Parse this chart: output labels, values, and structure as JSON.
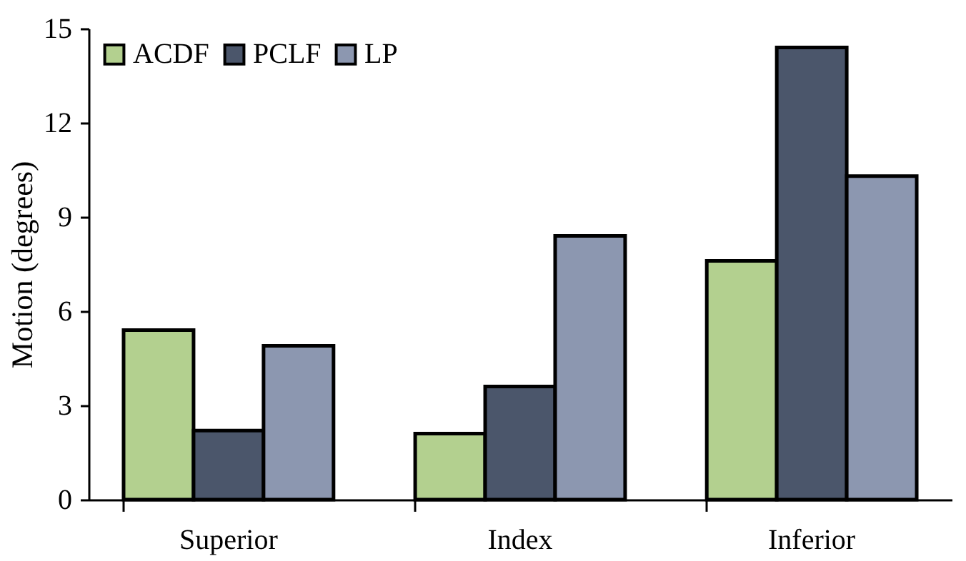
{
  "chart_data": {
    "type": "bar",
    "ylabel": "Motion (degrees)",
    "categories": [
      "Superior",
      "Index",
      "Inferior"
    ],
    "series": [
      {
        "name": "ACDF",
        "color": "#b3d08f",
        "values": [
          5.4,
          2.1,
          7.6
        ]
      },
      {
        "name": "PCLF",
        "color": "#4b566b",
        "values": [
          2.2,
          3.6,
          14.4
        ]
      },
      {
        "name": "LP",
        "color": "#8c97b0",
        "values": [
          4.9,
          8.4,
          10.3
        ]
      }
    ],
    "ylim": [
      0,
      15
    ],
    "yticks": [
      0,
      3,
      6,
      9,
      12,
      15
    ],
    "grid": false,
    "legend": "top left"
  }
}
